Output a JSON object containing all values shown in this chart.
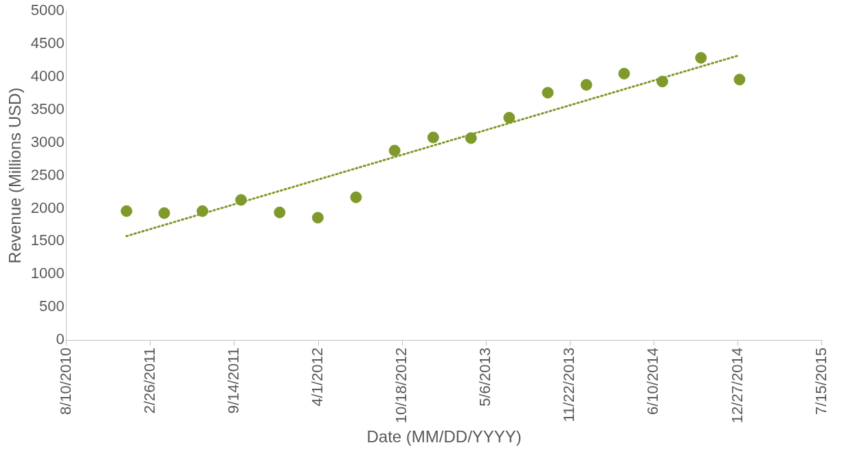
{
  "chart_data": {
    "type": "scatter",
    "xlabel": "Date (MM/DD/YYYY)",
    "ylabel": "Revenue (Millions USD)",
    "xlim": [
      "2010-08-10",
      "2015-07-15"
    ],
    "xticks": [
      {
        "value": "2010-08-10",
        "label": "8/10/2010"
      },
      {
        "value": "2011-02-26",
        "label": "2/26/2011"
      },
      {
        "value": "2011-09-14",
        "label": "9/14/2011"
      },
      {
        "value": "2012-04-01",
        "label": "4/1/2012"
      },
      {
        "value": "2012-10-18",
        "label": "10/18/2012"
      },
      {
        "value": "2013-05-06",
        "label": "5/6/2013"
      },
      {
        "value": "2013-11-22",
        "label": "11/22/2013"
      },
      {
        "value": "2014-06-10",
        "label": "6/10/2014"
      },
      {
        "value": "2014-12-27",
        "label": "12/27/2014"
      },
      {
        "value": "2015-07-15",
        "label": "7/15/2015"
      }
    ],
    "ylim": [
      0,
      5000
    ],
    "yticks": [
      0,
      500,
      1000,
      1500,
      2000,
      2500,
      3000,
      3500,
      4000,
      4500,
      5000
    ],
    "grid": false,
    "legend": false,
    "series": [
      {
        "color": "#7f9a2b",
        "marker": "circle",
        "x": [
          "2010-12-31",
          "2011-03-31",
          "2011-06-30",
          "2011-09-30",
          "2011-12-31",
          "2012-03-31",
          "2012-06-30",
          "2012-09-30",
          "2012-12-31",
          "2013-03-31",
          "2013-06-30",
          "2013-09-30",
          "2013-12-31",
          "2014-03-31",
          "2014-06-30",
          "2014-09-30",
          "2014-12-31"
        ],
        "values": [
          1960,
          1930,
          1960,
          2130,
          1940,
          1860,
          2170,
          2880,
          3080,
          3070,
          3380,
          3760,
          3880,
          4050,
          3930,
          4290,
          3960
        ]
      },
      {
        "type": "line",
        "color": "#7f9a2b",
        "marker": "none",
        "line_style": "dotted",
        "x": [
          "2010-12-31",
          "2014-12-31"
        ],
        "values": [
          1580,
          4330
        ]
      }
    ]
  }
}
